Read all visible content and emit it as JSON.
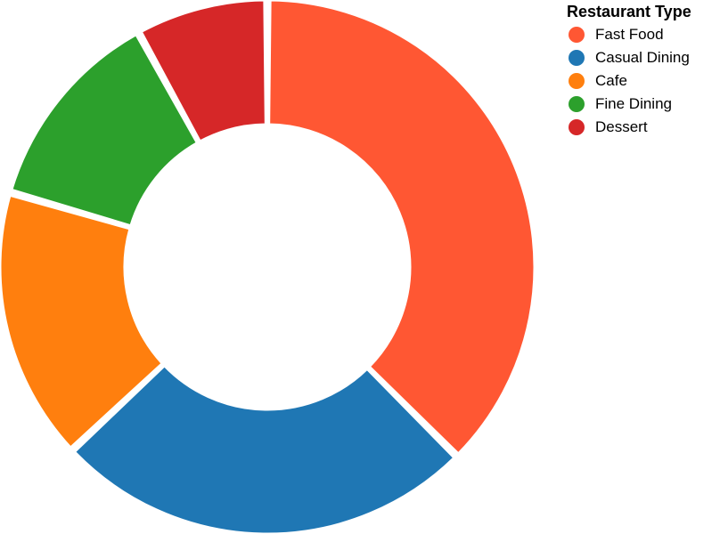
{
  "chart_data": {
    "type": "pie",
    "donut": true,
    "legend_title": "Restaurant Type",
    "legend_position": "top-right",
    "categories": [
      "Fast Food",
      "Casual Dining",
      "Cafe",
      "Fine Dining",
      "Dessert"
    ],
    "values": [
      37.5,
      25.5,
      16.5,
      12.5,
      8.0
    ],
    "colors": [
      "#ff5733",
      "#1f77b4",
      "#ff7f0e",
      "#2ca02c",
      "#d62728"
    ]
  }
}
